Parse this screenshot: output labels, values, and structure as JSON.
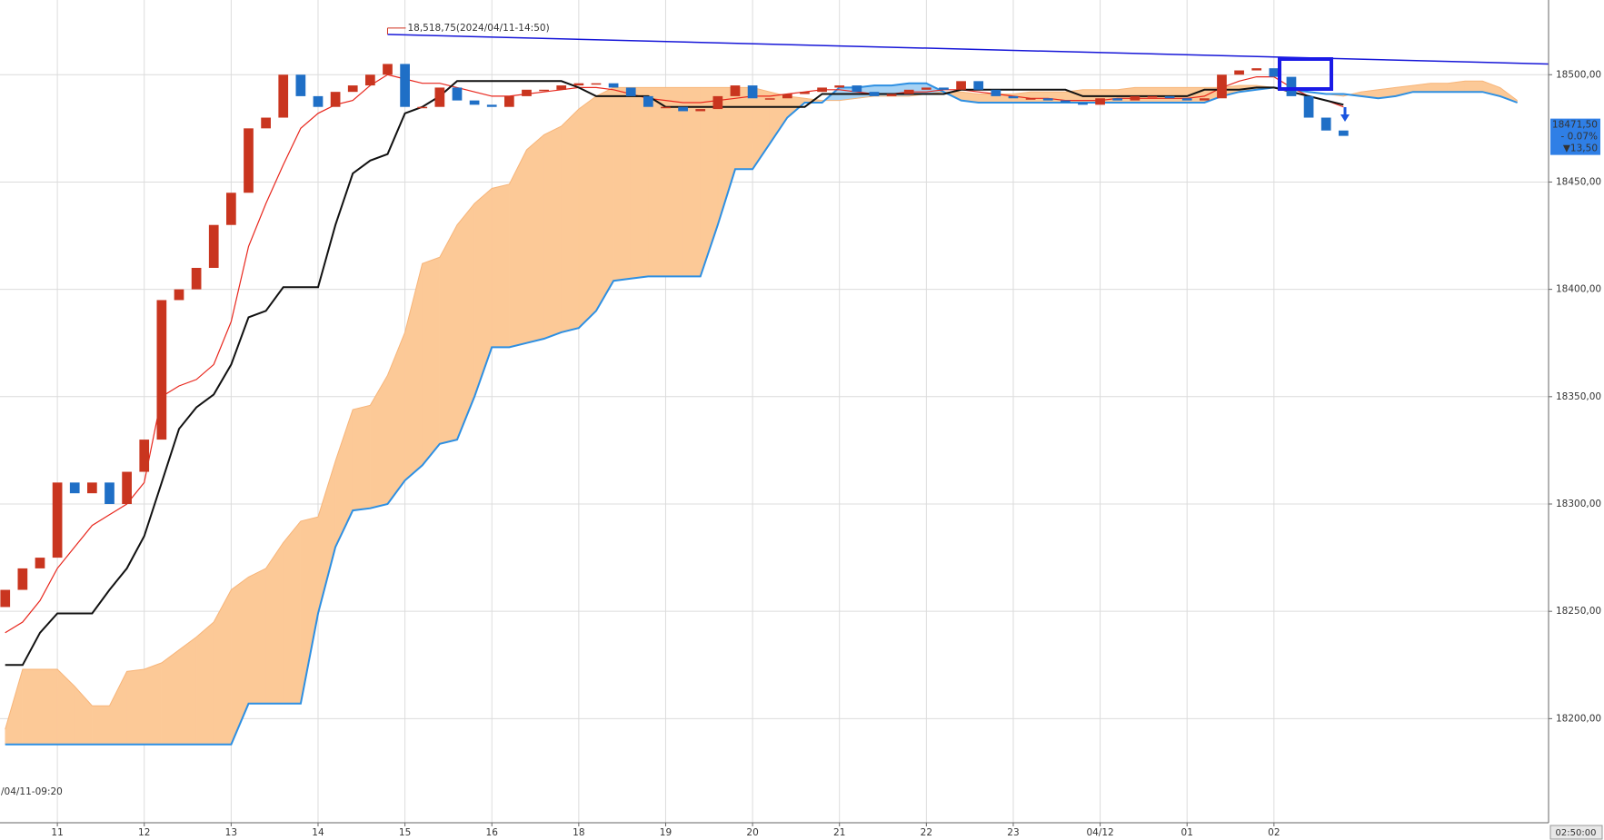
{
  "chart_data": {
    "type": "candlestick",
    "categories": [
      null,
      null,
      null,
      "11",
      null,
      null,
      null,
      null,
      "12",
      null,
      null,
      null,
      null,
      "13",
      null,
      null,
      null,
      null,
      "14",
      null,
      null,
      null,
      null,
      "15",
      null,
      null,
      null,
      null,
      "16",
      null,
      null,
      null,
      null,
      "18",
      null,
      null,
      null,
      null,
      "19",
      null,
      null,
      null,
      null,
      "20",
      null,
      null,
      null,
      null,
      "21",
      null,
      null,
      null,
      null,
      "22",
      null,
      null,
      null,
      null,
      "23",
      null,
      null,
      null,
      null,
      "04/12",
      null,
      null,
      null,
      null,
      "01",
      null,
      null,
      null,
      null,
      "02",
      null,
      null,
      null,
      null,
      null,
      null,
      null,
      null,
      null,
      null,
      null,
      null,
      null,
      null
    ],
    "open": [
      18252,
      18260,
      18270,
      18275,
      18310,
      18305,
      18310,
      18300,
      18315,
      18330,
      18395,
      18400,
      18410,
      18430,
      18445,
      18475,
      18480,
      18500,
      18490,
      18485,
      18492,
      18495,
      18500,
      18505,
      18485,
      18485,
      18494,
      18488,
      18486,
      18485,
      18490,
      18493,
      18493,
      18495,
      18496,
      18496,
      18494,
      18490,
      18485,
      18485,
      18483,
      18484,
      18490,
      18495,
      18489,
      18489,
      18491,
      18492,
      18494,
      18495,
      18492,
      18490,
      18491,
      18493,
      18494,
      18493,
      18497,
      18493,
      18490,
      18489,
      18489,
      18488,
      18487,
      18486,
      18489,
      18488,
      18490,
      18490,
      18489,
      18488,
      18489,
      18500,
      18502,
      18503,
      18499,
      18490,
      18480,
      18474,
      null,
      null,
      null,
      null,
      null,
      null,
      null,
      null,
      null,
      null
    ],
    "close": [
      18260,
      18270,
      18275,
      18310,
      18305,
      18310,
      18300,
      18315,
      18330,
      18395,
      18400,
      18410,
      18430,
      18445,
      18475,
      18480,
      18500,
      18490,
      18485,
      18492,
      18495,
      18500,
      18505,
      18485,
      18485,
      18494,
      18488,
      18486,
      18485,
      18490,
      18493,
      18493,
      18495,
      18496,
      18496,
      18494,
      18490,
      18485,
      18485,
      18483,
      18484,
      18490,
      18495,
      18489,
      18489,
      18491,
      18492,
      18494,
      18495,
      18492,
      18490,
      18491,
      18493,
      18494,
      18493,
      18497,
      18493,
      18490,
      18489,
      18489,
      18488,
      18487,
      18486,
      18489,
      18488,
      18490,
      18490,
      18489,
      18488,
      18489,
      18500,
      18502,
      18503,
      18499,
      18490,
      18480,
      18474,
      18471.5,
      null,
      null,
      null,
      null,
      null,
      null,
      null,
      null,
      null,
      null
    ],
    "up_color": "#c9351f",
    "down_color": "#1f6fc6",
    "lines": [
      {
        "color": "#e8261c",
        "values": [
          18240,
          18245,
          18255,
          18270,
          18280,
          18290,
          18295,
          18300,
          18310,
          18350,
          18355,
          18358,
          18365,
          18385,
          18420,
          18440,
          18458,
          18475,
          18482,
          18486,
          18488,
          18495,
          18500,
          18498,
          18496,
          18496,
          18494,
          18492,
          18490,
          18490,
          18491,
          18492,
          18493,
          18494,
          18494,
          18493,
          18491,
          18489,
          18488,
          18487,
          18487,
          18488,
          18489,
          18490,
          18490,
          18491,
          18492,
          18493,
          18493,
          18492,
          18491,
          18491,
          18492,
          18492,
          18493,
          18493,
          18492,
          18491,
          18490,
          18489,
          18489,
          18488,
          18488,
          18488,
          18489,
          18489,
          18489,
          18489,
          18489,
          18490,
          18494,
          18497,
          18499,
          18499,
          18494,
          18490,
          18488,
          18485,
          null,
          null,
          null,
          null,
          null,
          null,
          null,
          null,
          null,
          null
        ]
      },
      {
        "color": "#111111",
        "values": [
          18225,
          18225,
          18240,
          18249,
          18249,
          18249,
          18260,
          18270,
          18285,
          18310,
          18335,
          18345,
          18351,
          18365,
          18387,
          18390,
          18401,
          18401,
          18401,
          18430,
          18454,
          18460,
          18463,
          18482,
          18485,
          18490,
          18497,
          18497,
          18497,
          18497,
          18497,
          18497,
          18497,
          18494,
          18490,
          18490,
          18490,
          18490,
          18485,
          18485,
          18485,
          18485,
          18485,
          18485,
          18485,
          18485,
          18485,
          18491,
          18491,
          18491,
          18491,
          18491,
          18491,
          18491,
          18491,
          18493,
          18493,
          18493,
          18493,
          18493,
          18493,
          18493,
          18490,
          18490,
          18490,
          18490,
          18490,
          18490,
          18490,
          18493,
          18493,
          18493,
          18494,
          18494,
          18492,
          18490,
          18488,
          18486,
          null,
          null,
          null,
          null,
          null,
          null,
          null,
          null,
          null,
          null
        ]
      }
    ],
    "cloud": {
      "fill_up": "#fcc997",
      "fill_down": "#a6d2f4",
      "span_a": {
        "color": "#f7b57a",
        "values": [
          18195,
          18223,
          18223,
          18223,
          18215,
          18206,
          18206,
          18222,
          18223,
          18226,
          18232,
          18238,
          18245,
          18260,
          18266,
          18270,
          18282,
          18292,
          18294,
          18320,
          18344,
          18346,
          18360,
          18380,
          18412,
          18415,
          18430,
          18440,
          18447,
          18449,
          18465,
          18472,
          18476,
          18484,
          18490,
          18494,
          18494,
          18494,
          18494,
          18494,
          18494,
          18494,
          18494,
          18494,
          18492,
          18490,
          18489,
          18488,
          18488,
          18489,
          18490,
          18490,
          18490,
          18491,
          18492,
          18492,
          18491,
          18491,
          18491,
          18492,
          18492,
          18492,
          18493,
          18493,
          18493,
          18494,
          18494,
          18494,
          18494,
          18494,
          18494,
          18495,
          18495,
          18494,
          18493,
          18492,
          18491,
          18490,
          18492,
          18493,
          18494,
          18495,
          18496,
          18496,
          18497,
          18497,
          18494,
          18488
        ]
      },
      "span_b": {
        "color": "#2d8fe2",
        "values": [
          18188,
          18188,
          18188,
          18188,
          18188,
          18188,
          18188,
          18188,
          18188,
          18188,
          18188,
          18188,
          18188,
          18188,
          18207,
          18207,
          18207,
          18207,
          18249,
          18280,
          18297,
          18298,
          18300,
          18311,
          18318,
          18328,
          18330,
          18350,
          18373,
          18373,
          18375,
          18377,
          18380,
          18382,
          18390,
          18404,
          18405,
          18406,
          18406,
          18406,
          18406,
          18430,
          18456,
          18456,
          18468,
          18480,
          18487,
          18487,
          18494,
          18494,
          18495,
          18495,
          18496,
          18496,
          18492,
          18488,
          18487,
          18487,
          18487,
          18487,
          18487,
          18487,
          18487,
          18487,
          18487,
          18487,
          18487,
          18487,
          18487,
          18487,
          18490,
          18492,
          18493,
          18494,
          18493,
          18492,
          18491,
          18491,
          18490,
          18489,
          18490,
          18492,
          18492,
          18492,
          18492,
          18492,
          18490,
          18487
        ]
      }
    },
    "trendline": {
      "color": "#1616d8",
      "x": [
        22,
        88.8
      ],
      "values": [
        18518.75,
        18505
      ]
    },
    "annotations": [
      {
        "text": "18,518,75(2024/04/11-14:50)",
        "color": "#d0301e"
      },
      {
        "text": "/04/11-09:20",
        "color": "#2a62cf"
      }
    ],
    "price_label": {
      "lines": [
        "18471,50",
        "- 0.07%",
        "▼13,50"
      ],
      "color": "#2f7fe6"
    },
    "x_cursor_label": "02:50:00",
    "xlim": [
      -0.3,
      88.8
    ],
    "ylim": [
      18151.5,
      18534.8
    ],
    "yticks": [
      {
        "value": 18200,
        "label": "18200,00"
      },
      {
        "value": 18250,
        "label": "18250,00"
      },
      {
        "value": 18300,
        "label": "18300,00"
      },
      {
        "value": 18350,
        "label": "18350,00"
      },
      {
        "value": 18400,
        "label": "18400,00"
      },
      {
        "value": 18450,
        "label": "18450,00"
      },
      {
        "value": 18500,
        "label": "18500,00"
      }
    ],
    "grid": true
  }
}
